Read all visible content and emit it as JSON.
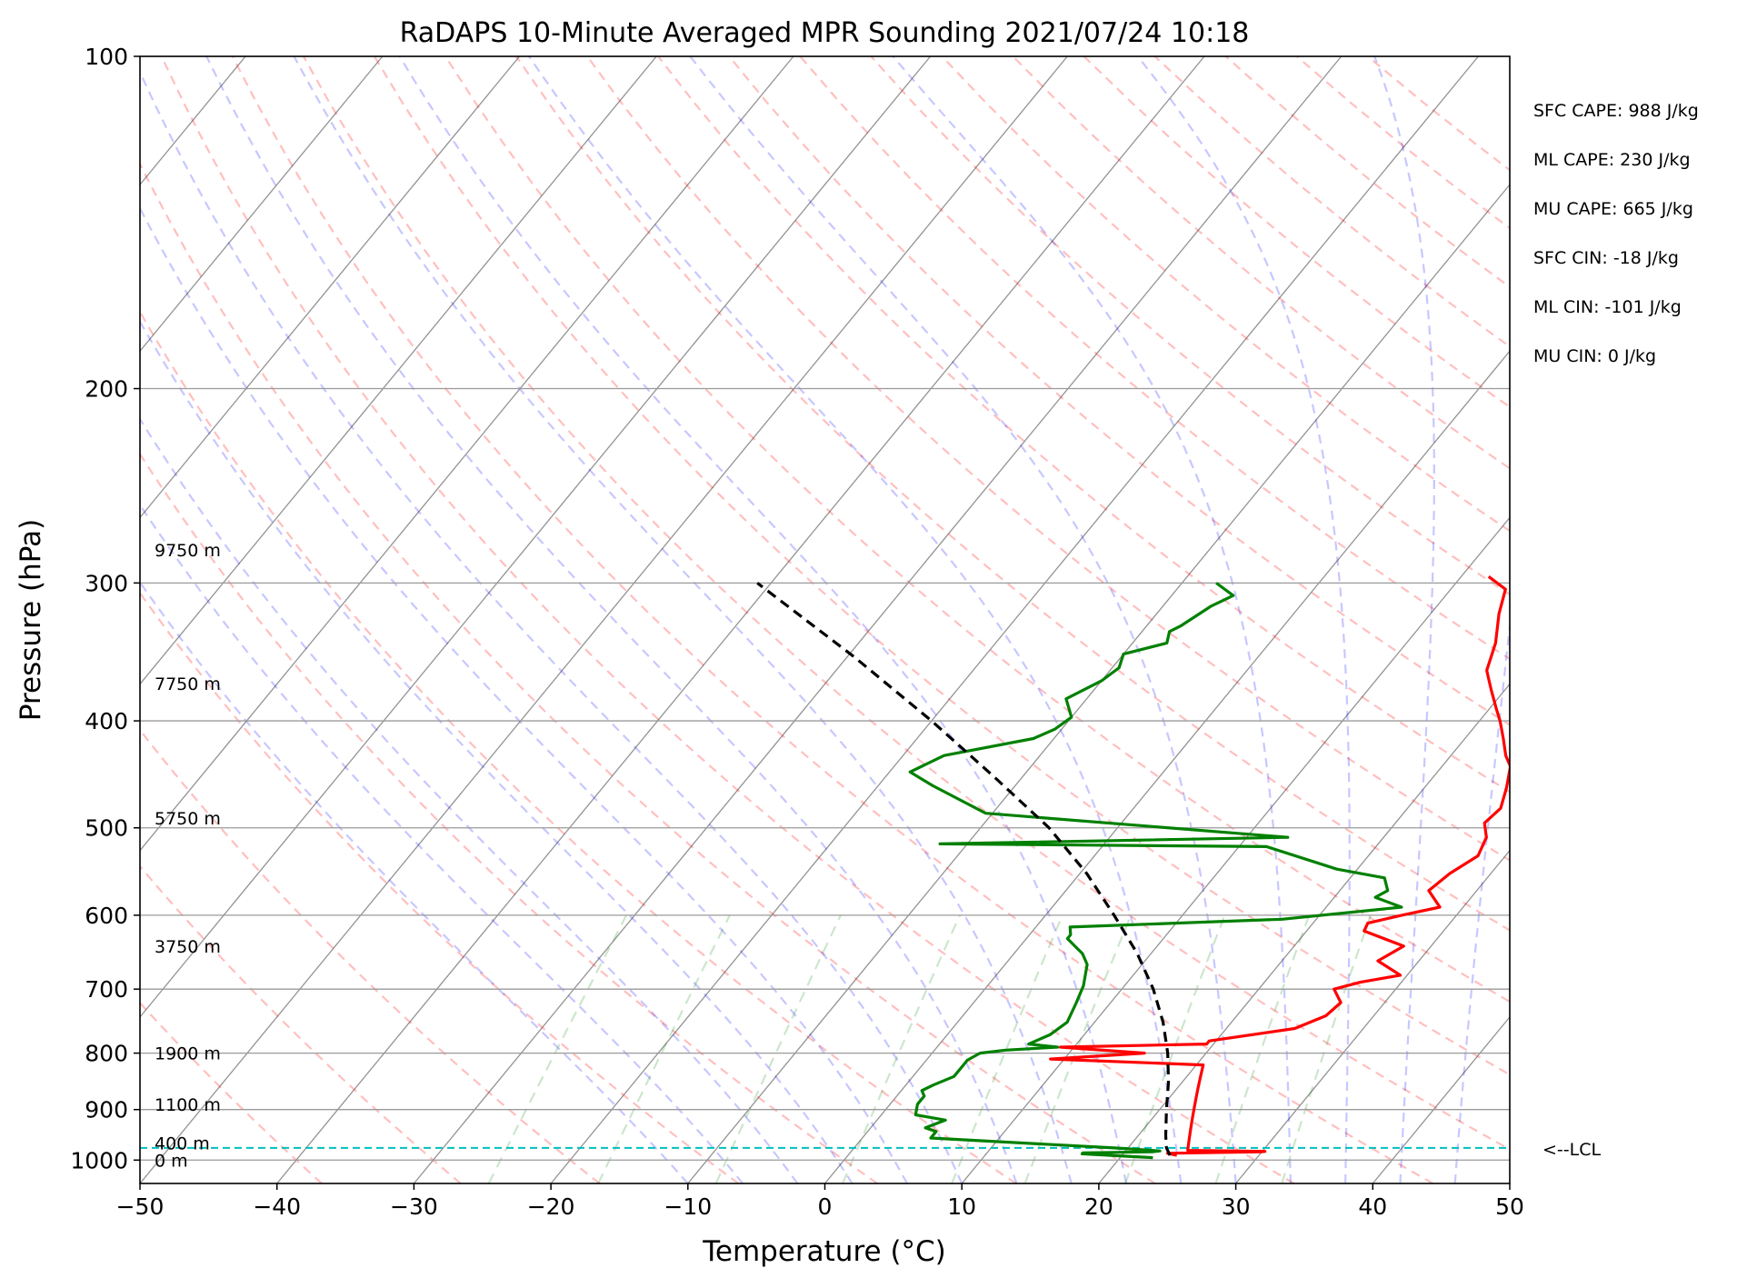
{
  "chart_data": {
    "type": "line",
    "diagram": "Skew-T log-P",
    "title": "RaDAPS 10-Minute Averaged MPR Sounding 2021/07/24 10:18",
    "xlabel": "Temperature (°C)",
    "ylabel": "Pressure (hPa)",
    "xlim": [
      -50,
      50
    ],
    "ylim": [
      1050,
      100
    ],
    "y_scale": "log",
    "x_ticks": [
      -50,
      -40,
      -30,
      -20,
      -10,
      0,
      10,
      20,
      30,
      40,
      50
    ],
    "x_tick_labels": [
      "−50",
      "−40",
      "−30",
      "−20",
      "−10",
      "0",
      "10",
      "20",
      "30",
      "40",
      "50"
    ],
    "y_ticks": [
      100,
      200,
      300,
      400,
      500,
      600,
      700,
      800,
      900,
      1000
    ],
    "y_tick_labels": [
      "100",
      "200",
      "300",
      "400",
      "500",
      "600",
      "700",
      "800",
      "900",
      "1000"
    ],
    "grid": true,
    "colors": {
      "temperature": "#ff0000",
      "dewpoint": "#008000",
      "parcel": "#000000",
      "lcl": "#00bfbf",
      "dry_adiabat": "#ff0000",
      "moist_adiabat": "#0000ff",
      "mixing_ratio": "#008000",
      "isotherm": "#808080"
    },
    "series": [
      {
        "role": "temperature",
        "p": [
          990,
          986,
          983,
          982,
          980,
          960,
          940,
          920,
          900,
          880,
          860,
          840,
          820,
          810,
          800,
          790,
          785,
          780,
          760,
          740,
          720,
          700,
          690,
          680,
          660,
          640,
          620,
          610,
          600,
          590,
          570,
          550,
          530,
          510,
          495,
          480,
          460,
          440,
          430,
          415,
          400,
          390,
          375,
          365,
          360,
          340,
          320,
          304,
          296
        ],
        "t": [
          24.0,
          23.2,
          30.0,
          30.2,
          24.5,
          24.0,
          23.5,
          23.0,
          22.5,
          22.0,
          21.5,
          21.0,
          20.5,
          9.0,
          15.5,
          9.0,
          19.5,
          19.5,
          25.0,
          26.5,
          26.8,
          25.5,
          27.0,
          29.5,
          27.0,
          28.0,
          24.2,
          24.0,
          26.0,
          28.3,
          26.5,
          27.0,
          28.0,
          27.5,
          26.5,
          26.8,
          26.0,
          25.0,
          24.0,
          22.8,
          21.5,
          20.5,
          19.0,
          18.0,
          17.5,
          16.5,
          15.0,
          14.0,
          12.0
        ]
      },
      {
        "role": "dewpoint",
        "p": [
          995,
          987,
          985,
          983,
          981,
          975,
          955,
          950,
          942,
          935,
          920,
          910,
          890,
          875,
          865,
          855,
          840,
          820,
          812,
          800,
          795,
          790,
          785,
          770,
          750,
          720,
          695,
          680,
          665,
          650,
          640,
          630,
          625,
          615,
          605,
          590,
          578,
          570,
          555,
          545,
          520,
          517,
          510,
          485,
          458,
          445,
          430,
          415,
          407,
          397,
          382,
          368,
          358,
          348,
          340,
          332,
          328,
          315,
          308,
          300
        ],
        "t": [
          22.4,
          17.0,
          17.0,
          22.0,
          22.5,
          19.0,
          5.0,
          5.0,
          5.0,
          4.0,
          5.0,
          2.5,
          2.0,
          2.0,
          1.5,
          2.0,
          3.0,
          3.0,
          3.0,
          3.5,
          5.2,
          8.8,
          6.5,
          7.5,
          8.0,
          7.5,
          7.0,
          6.5,
          6.0,
          5.0,
          4.0,
          3.0,
          3.0,
          2.5,
          17.5,
          25.5,
          23.0,
          23.5,
          22.5,
          18.5,
          12.0,
          -12.0,
          13.0,
          -10.5,
          -16.0,
          -18.5,
          -17.0,
          -11.5,
          -10.5,
          -10.0,
          -11.5,
          -10.0,
          -9.5,
          -10.0,
          -7.5,
          -8.0,
          -7.5,
          -6.5,
          -5.5,
          -7.5
        ]
      },
      {
        "role": "parcel",
        "p": [
          990,
          975,
          950,
          900,
          850,
          800,
          750,
          700,
          650,
          600,
          550,
          500,
          450,
          400,
          350,
          300
        ],
        "t": [
          23.5,
          22.8,
          22.0,
          20.5,
          19.0,
          17.2,
          15.0,
          12.3,
          9.0,
          5.0,
          0.5,
          -5.0,
          -12.0,
          -20.0,
          -29.5,
          -41.0
        ]
      }
    ],
    "lcl": {
      "p": 975,
      "label": "<--LCL"
    },
    "height_labels": [
      {
        "p": 1000,
        "label": "0 m"
      },
      {
        "p": 965,
        "label": "400 m"
      },
      {
        "p": 890,
        "label": "1100 m"
      },
      {
        "p": 800,
        "label": "1900 m"
      },
      {
        "p": 640,
        "label": "3750 m"
      },
      {
        "p": 490,
        "label": "5750 m"
      },
      {
        "p": 370,
        "label": "7750 m"
      },
      {
        "p": 280,
        "label": "9750 m"
      }
    ],
    "annotations": [
      "SFC CAPE: 988 J/kg",
      "ML CAPE: 230 J/kg",
      "MU CAPE: 665 J/kg",
      "SFC CIN: -18 J/kg",
      "ML CIN: -101 J/kg",
      "MU CIN: 0 J/kg"
    ]
  }
}
